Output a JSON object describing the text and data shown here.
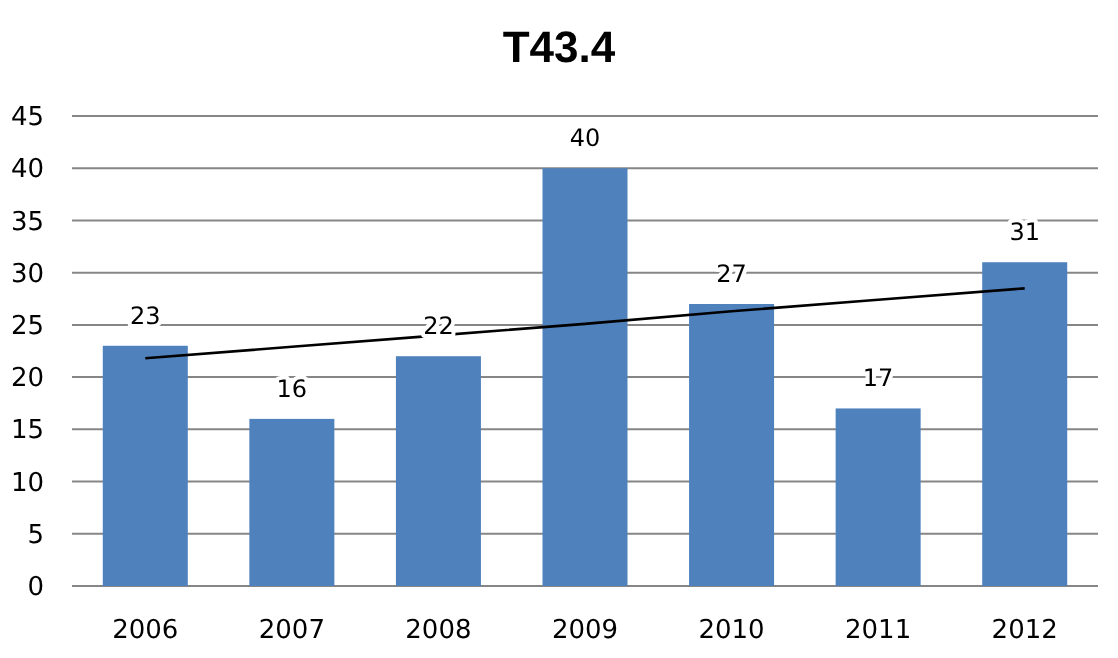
{
  "chart_data": {
    "type": "bar",
    "title": "T43.4",
    "categories": [
      "2006",
      "2007",
      "2008",
      "2009",
      "2010",
      "2011",
      "2012"
    ],
    "series": [
      {
        "color": "#4f81bd",
        "values": [
          23,
          16,
          22,
          40,
          27,
          17,
          31
        ],
        "value_labels": [
          "23",
          "16",
          "22",
          "40",
          "27",
          "17",
          "31"
        ]
      },
      {
        "type": "line",
        "color": "#000000",
        "values": [
          21.8,
          22.9,
          24.0,
          25.1,
          26.3,
          27.4,
          28.5
        ]
      }
    ],
    "ylim": [
      0,
      45
    ],
    "yticks": [
      0,
      5,
      10,
      15,
      20,
      25,
      30,
      35,
      40,
      45
    ],
    "grid": "y"
  }
}
